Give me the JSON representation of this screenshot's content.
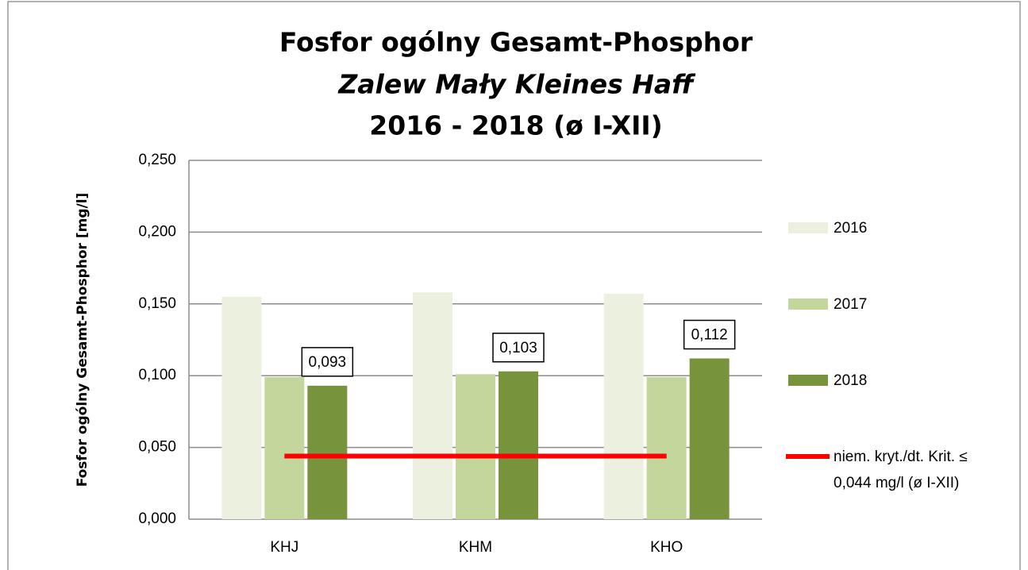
{
  "chart_data": {
    "type": "bar",
    "title_lines": [
      "Fosfor ogólny  Gesamt-Phosphor",
      "Zalew Mały  Kleines Haff",
      "2016 - 2018 (ø I-XII)"
    ],
    "ylabel": "Fosfor ogólny  Gesamt-Phosphor   [mg/l]",
    "categories": [
      "KHJ",
      "KHM",
      "KHO"
    ],
    "series": [
      {
        "name": "2016",
        "color": "#ebf1de",
        "values": [
          0.155,
          0.158,
          0.157
        ]
      },
      {
        "name": "2017",
        "color": "#c3d69b",
        "values": [
          0.099,
          0.101,
          0.099
        ]
      },
      {
        "name": "2018",
        "color": "#77933c",
        "values": [
          0.093,
          0.103,
          0.112
        ],
        "value_labels": [
          "0,093",
          "0,103",
          "0,112"
        ]
      },
      {
        "name": "niem. kryt./dt. Krit. ≤ 0,044 mg/l (ø I-XII)",
        "type": "line",
        "color": "#ff0000",
        "values": [
          0.044,
          0.044,
          0.044
        ]
      }
    ],
    "ylim": [
      0,
      0.25
    ],
    "yticks": [
      {
        "value": 0,
        "label": "0,000"
      },
      {
        "value": 0.05,
        "label": "0,050"
      },
      {
        "value": 0.1,
        "label": "0,100"
      },
      {
        "value": 0.15,
        "label": "0,150"
      },
      {
        "value": 0.2,
        "label": "0,200"
      },
      {
        "value": 0.25,
        "label": "0,250"
      }
    ],
    "grid": true,
    "legend": "right"
  }
}
